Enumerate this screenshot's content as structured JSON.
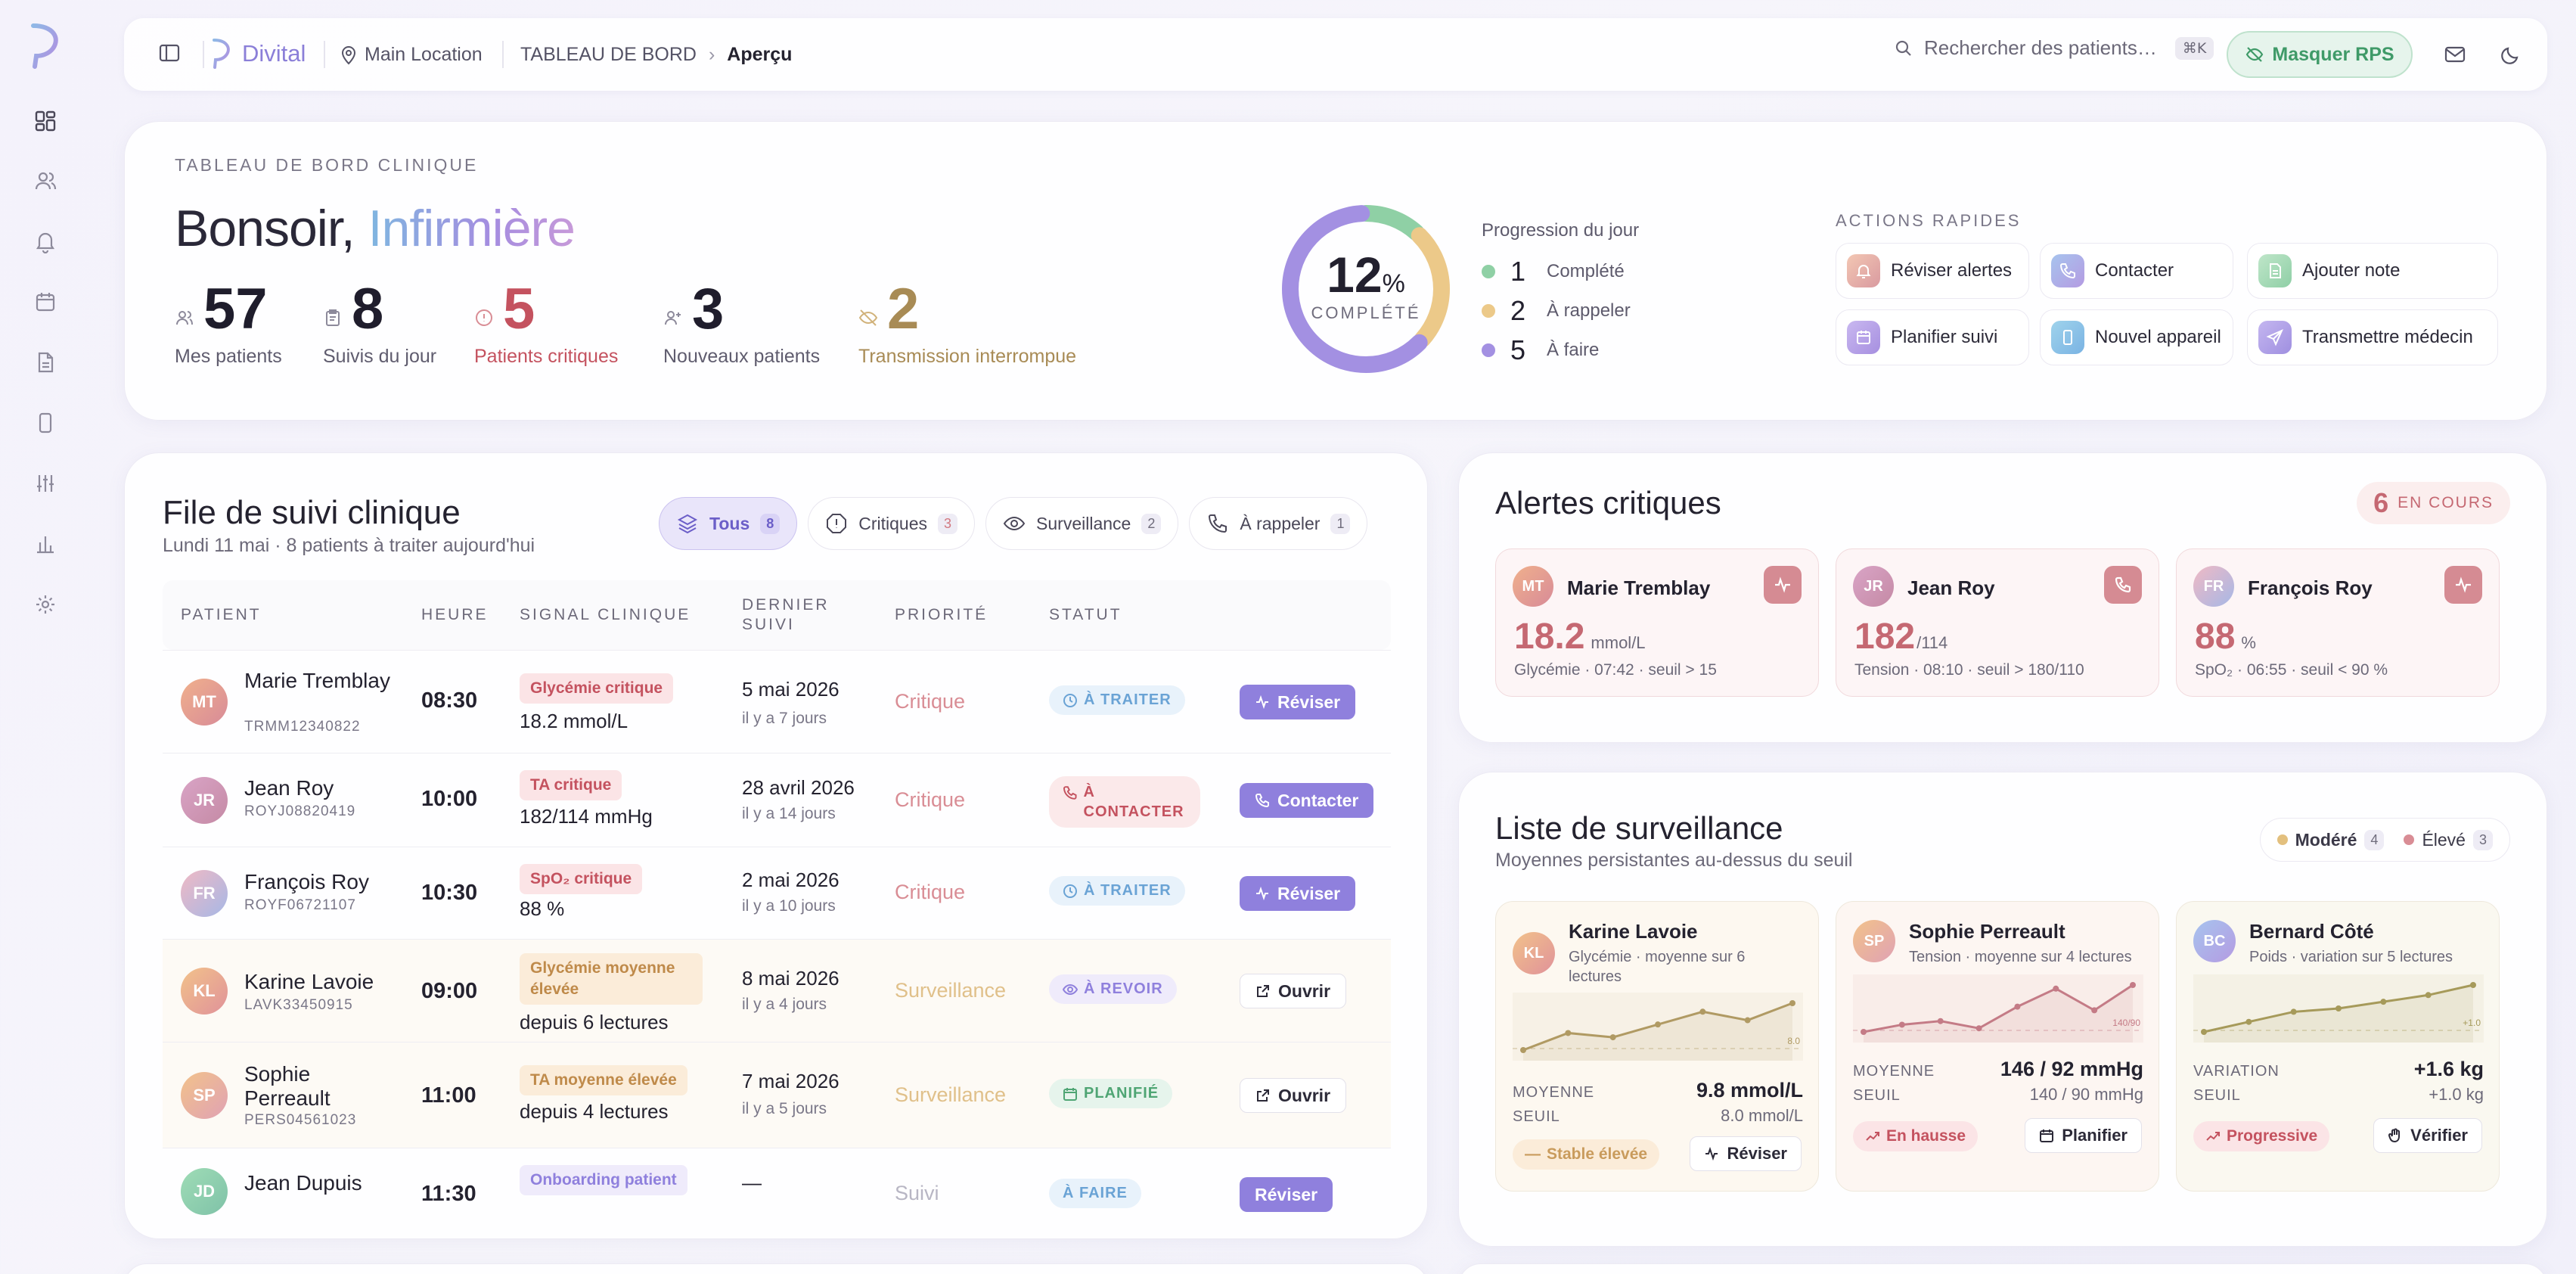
{
  "sidebar": {
    "items": [
      "dashboard-icon",
      "users-icon",
      "bell-icon",
      "calendar-icon",
      "document-icon",
      "device-icon",
      "sliders-icon",
      "chart-icon",
      "settings-icon"
    ]
  },
  "topbar": {
    "brand": "Divital",
    "location": "Main Location",
    "breadcrumb_root": "TABLEAU DE BORD",
    "breadcrumb_current": "Aperçu",
    "search_placeholder": "Rechercher des patients…",
    "search_shortcut": "⌘K",
    "rps_button": "Masquer RPS"
  },
  "hero": {
    "eyebrow": "TABLEAU DE BORD CLINIQUE",
    "greeting": "Bonsoir,",
    "role": "Infirmière",
    "stats": [
      {
        "value": "57",
        "label": "Mes patients"
      },
      {
        "value": "8",
        "label": "Suivis du jour"
      },
      {
        "value": "5",
        "label": "Patients critiques"
      },
      {
        "value": "3",
        "label": "Nouveaux patients"
      },
      {
        "value": "2",
        "label": "Transmission interrompue"
      }
    ],
    "progress": {
      "percent": "12",
      "percent_unit": "%",
      "caption": "COMPLÉTÉ",
      "title": "Progression du jour",
      "items": [
        {
          "n": "1",
          "label": "Complété",
          "color": "#8fd0a5"
        },
        {
          "n": "2",
          "label": "À rappeler",
          "color": "#ecc989"
        },
        {
          "n": "5",
          "label": "À faire",
          "color": "#a390e2"
        }
      ]
    },
    "quick_actions_title": "ACTIONS RAPIDES",
    "quick_actions": [
      {
        "label": "Réviser alertes",
        "icon": "bell-icon"
      },
      {
        "label": "Contacter",
        "icon": "phone-icon"
      },
      {
        "label": "Ajouter note",
        "icon": "note-icon"
      },
      {
        "label": "Planifier suivi",
        "icon": "calendar-icon"
      },
      {
        "label": "Nouvel appareil",
        "icon": "device-icon"
      },
      {
        "label": "Transmettre médecin",
        "icon": "send-icon"
      }
    ]
  },
  "queue": {
    "title": "File de suivi clinique",
    "subtitle": "Lundi 11 mai · 8 patients à traiter aujourd'hui",
    "filters": [
      {
        "label": "Tous",
        "count": "8"
      },
      {
        "label": "Critiques",
        "count": "3"
      },
      {
        "label": "Surveillance",
        "count": "2"
      },
      {
        "label": "À rappeler",
        "count": "1"
      }
    ],
    "columns": [
      "PATIENT",
      "HEURE",
      "SIGNAL CLINIQUE",
      "DERNIER SUIVI",
      "PRIORITÉ",
      "STATUT"
    ],
    "rows": [
      {
        "initials": "MT",
        "name": "Marie Tremblay",
        "id": "TRMM12340822",
        "time": "08:30",
        "signal": "Glycémie critique",
        "value": "18.2 mmol/L",
        "last": "5 mai 2026",
        "ago": "il y a 7 jours",
        "priority": "Critique",
        "status": "À TRAITER",
        "action": "Réviser"
      },
      {
        "initials": "JR",
        "name": "Jean Roy",
        "id": "ROYJ08820419",
        "time": "10:00",
        "signal": "TA critique",
        "value": "182/114 mmHg",
        "last": "28 avril 2026",
        "ago": "il y a 14 jours",
        "priority": "Critique",
        "status": "À CONTACTER",
        "action": "Contacter"
      },
      {
        "initials": "FR",
        "name": "François Roy",
        "id": "ROYF06721107",
        "time": "10:30",
        "signal": "SpO₂ critique",
        "value": "88 %",
        "last": "2 mai 2026",
        "ago": "il y a 10 jours",
        "priority": "Critique",
        "status": "À TRAITER",
        "action": "Réviser"
      },
      {
        "initials": "KL",
        "name": "Karine Lavoie",
        "id": "LAVK33450915",
        "time": "09:00",
        "signal": "Glycémie moyenne élevée",
        "value": "depuis 6 lectures",
        "last": "8 mai 2026",
        "ago": "il y a 4 jours",
        "priority": "Surveillance",
        "status": "À REVOIR",
        "action": "Ouvrir"
      },
      {
        "initials": "SP",
        "name": "Sophie Perreault",
        "id": "PERS04561023",
        "time": "11:00",
        "signal": "TA moyenne élevée",
        "value": "depuis 4 lectures",
        "last": "7 mai 2026",
        "ago": "il y a 5 jours",
        "priority": "Surveillance",
        "status": "PLANIFIÉ",
        "action": "Ouvrir"
      },
      {
        "initials": "JD",
        "name": "Jean Dupuis",
        "id": "",
        "time": "11:30",
        "signal": "Onboarding patient",
        "value": "",
        "last": "—",
        "ago": "",
        "priority": "Suivi",
        "status": "À FAIRE",
        "action": "Réviser"
      }
    ]
  },
  "alerts": {
    "title": "Alertes critiques",
    "count": "6",
    "count_label": "EN COURS",
    "cards": [
      {
        "initials": "MT",
        "name": "Marie Tremblay",
        "value": "18.2",
        "unit": "mmol/L",
        "meta": "Glycémie · 07:42 · seuil > 15",
        "icon": "activity-icon"
      },
      {
        "initials": "JR",
        "name": "Jean Roy",
        "value": "182",
        "unit": "/114",
        "meta": "Tension · 08:10 · seuil > 180/110",
        "icon": "phone-icon"
      },
      {
        "initials": "FR",
        "name": "François Roy",
        "value": "88",
        "unit": "%",
        "meta": "SpO₂ · 06:55 · seuil < 90 %",
        "icon": "activity-icon"
      }
    ]
  },
  "watch": {
    "title": "Liste de surveillance",
    "subtitle": "Moyennes persistantes au-dessus du seuil",
    "legend": [
      {
        "label": "Modéré",
        "count": "4",
        "color": "#e3c07e"
      },
      {
        "label": "Élevé",
        "count": "3",
        "color": "#d98d95"
      }
    ],
    "cards": [
      {
        "initials": "KL",
        "name": "Karine Lavoie",
        "desc": "Glycémie · moyenne sur 6 lectures",
        "k1": "MOYENNE",
        "v1": "9.8 mmol/L",
        "k2": "SEUIL",
        "v2": "8.0 mmol/L",
        "threshold_label": "8.0",
        "tag": "Stable élevée",
        "button": "Réviser",
        "series": [
          8.7,
          9.1,
          9.0,
          9.3,
          9.6,
          9.4,
          9.8
        ],
        "color": "#b09a63"
      },
      {
        "initials": "SP",
        "name": "Sophie Perreault",
        "desc": "Tension · moyenne sur 4 lectures",
        "k1": "MOYENNE",
        "v1": "146 / 92 mmHg",
        "k2": "SEUIL",
        "v2": "140 / 90 mmHg",
        "threshold_label": "140/90",
        "tag": "En hausse",
        "button": "Planifier",
        "series": [
          140,
          142,
          143,
          141,
          147,
          152,
          146,
          153
        ],
        "color": "#c47b86"
      },
      {
        "initials": "BC",
        "name": "Bernard Côté",
        "desc": "Poids · variation sur 5 lectures",
        "k1": "VARIATION",
        "v1": "+1.6 kg",
        "k2": "SEUIL",
        "v2": "+1.0 kg",
        "threshold_label": "+1.0",
        "tag": "Progressive",
        "button": "Vérifier",
        "series": [
          0.2,
          0.5,
          0.8,
          0.9,
          1.1,
          1.3,
          1.6
        ],
        "color": "#a69a5a"
      }
    ]
  }
}
